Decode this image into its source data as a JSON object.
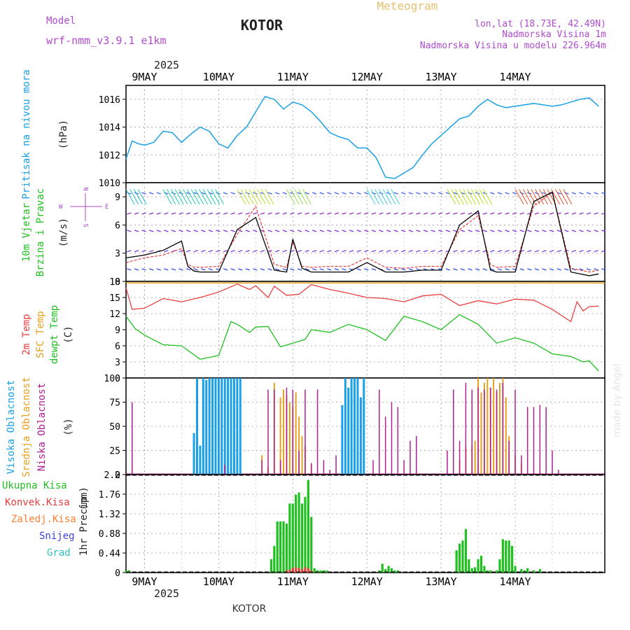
{
  "header": {
    "model_label": "Model",
    "model_name": "wrf-nmm_v3.9.1 e1km",
    "station": "KOTOR",
    "title": "Meteogram",
    "coords": "lon,lat (18.73E, 42.49N)",
    "elevation": "Nadmorska Visina 1m",
    "model_elevation": "Nadmorska Visina u modelu 226.964m",
    "footer_station": "KOTOR",
    "credit": "made by Angel"
  },
  "colors": {
    "pressure": "#1aa0e6",
    "t2m": "#e84040",
    "sfc": "#e6a020",
    "dewpoint": "#20c020",
    "high_cloud": "#1aa0e6",
    "mid_cloud": "#e6a020",
    "low_cloud": "#b02090",
    "total_precip": "#20c020",
    "conv_precip": "#e84040",
    "frozen": "#ff8030",
    "snow": "#4040e0",
    "hail": "#30c0c0",
    "wind_mean": "#000000",
    "wind_gust": "#e84040"
  },
  "chart_data": [
    {
      "type": "line",
      "name": "pressure",
      "ylabel": "Pritisak na nivou mora",
      "units": "(hPa)",
      "ylim": [
        1010,
        1017
      ],
      "yticks": [
        1010,
        1012,
        1014,
        1016
      ],
      "x_hours": [
        0,
        2,
        4,
        6,
        9,
        12,
        15,
        18,
        21,
        24,
        27,
        30,
        33,
        36,
        39,
        42,
        45,
        48,
        51,
        54,
        57,
        60,
        63,
        66,
        69,
        72,
        75,
        78,
        81,
        84,
        87,
        90,
        93,
        96,
        99,
        102,
        105,
        108,
        111,
        114,
        117,
        120,
        123,
        126,
        129,
        132,
        135,
        138,
        141,
        144,
        147,
        150,
        153
      ],
      "values": [
        1011.7,
        1013.0,
        1012.8,
        1012.7,
        1012.9,
        1013.7,
        1013.6,
        1012.9,
        1013.5,
        1014.0,
        1013.7,
        1012.8,
        1012.5,
        1013.4,
        1014.0,
        1015.1,
        1016.2,
        1016.0,
        1015.3,
        1015.8,
        1015.6,
        1015.1,
        1014.4,
        1013.6,
        1013.3,
        1013.1,
        1012.5,
        1012.5,
        1011.8,
        1010.4,
        1010.3,
        1010.7,
        1011.1,
        1012.0,
        1012.8,
        1013.4,
        1014.0,
        1014.6,
        1014.8,
        1015.5,
        1016.0,
        1015.6,
        1015.4,
        1015.5,
        1015.6,
        1015.7,
        1015.6,
        1015.5,
        1015.6,
        1015.8,
        1016.0,
        1016.1,
        1015.5
      ]
    },
    {
      "type": "line",
      "name": "wind",
      "ylabel": "10m Vjetar",
      "ylabel2": "Brzina i Pravac",
      "units": "(m/s)",
      "compass": {
        "n": "N",
        "w": "W",
        "e": "E",
        "s": "S"
      },
      "ylim": [
        0,
        10.5
      ],
      "yticks": [
        0,
        3,
        6,
        9
      ],
      "series": [
        {
          "name": "mean",
          "x_hours": [
            0,
            6,
            12,
            18,
            20,
            22,
            24,
            30,
            36,
            42,
            48,
            52,
            54,
            57,
            60,
            66,
            72,
            78,
            84,
            90,
            96,
            102,
            108,
            114,
            118,
            120,
            126,
            132,
            138,
            144,
            150,
            153
          ],
          "values": [
            2.5,
            2.8,
            3.3,
            4.3,
            1.6,
            1.1,
            1.0,
            1.0,
            5.5,
            6.8,
            1.2,
            1.0,
            4.5,
            1.4,
            1.0,
            1.0,
            1.0,
            2.0,
            1.0,
            1.0,
            1.2,
            1.2,
            6.0,
            7.5,
            1.2,
            1.0,
            1.0,
            8.5,
            9.5,
            1.0,
            0.6,
            0.8
          ]
        },
        {
          "name": "gust",
          "x_hours": [
            0,
            6,
            12,
            18,
            20,
            22,
            24,
            30,
            36,
            42,
            48,
            52,
            54,
            57,
            60,
            66,
            72,
            78,
            84,
            90,
            96,
            102,
            108,
            114,
            118,
            120,
            126,
            132,
            138,
            144,
            150,
            153
          ],
          "values": [
            2.0,
            2.5,
            2.8,
            3.5,
            1.8,
            1.5,
            1.5,
            1.6,
            5.0,
            8.0,
            1.8,
            1.5,
            4.2,
            1.6,
            1.5,
            1.6,
            1.6,
            2.5,
            1.5,
            1.4,
            1.6,
            1.6,
            5.5,
            7.0,
            1.8,
            1.5,
            1.6,
            8.0,
            9.5,
            1.4,
            1.0,
            1.2
          ]
        }
      ]
    },
    {
      "type": "line",
      "name": "temperature",
      "ylabel": "2m Temp",
      "ylabel2": "SFC Temp",
      "ylabel3": "dewpt Temp",
      "units": "(C)",
      "ylim": [
        0,
        18
      ],
      "yticks": [
        0,
        3,
        6,
        9,
        12,
        15,
        18
      ],
      "sfc_value": 17.7,
      "series": [
        {
          "name": "t2m",
          "x_hours": [
            0,
            2,
            6,
            12,
            18,
            24,
            30,
            36,
            40,
            42,
            46,
            48,
            52,
            56,
            60,
            66,
            72,
            78,
            84,
            90,
            96,
            102,
            108,
            114,
            120,
            126,
            132,
            138,
            144,
            146,
            148,
            150,
            153
          ],
          "values": [
            16.8,
            12.8,
            13.0,
            14.8,
            14.2,
            15.0,
            16.0,
            17.5,
            16.5,
            17.2,
            15.0,
            17.1,
            15.4,
            15.6,
            17.4,
            16.5,
            15.8,
            15.0,
            14.8,
            14.2,
            15.3,
            15.6,
            13.5,
            14.4,
            13.8,
            14.7,
            14.5,
            12.8,
            10.5,
            14.2,
            12.5,
            13.3,
            13.4
          ]
        },
        {
          "name": "dewpoint",
          "x_hours": [
            0,
            3,
            6,
            12,
            18,
            24,
            30,
            34,
            36,
            40,
            42,
            46,
            50,
            54,
            58,
            60,
            66,
            72,
            78,
            84,
            90,
            96,
            102,
            108,
            114,
            120,
            126,
            132,
            138,
            144,
            148,
            150,
            153
          ],
          "values": [
            11.5,
            9.2,
            8.0,
            6.2,
            6.0,
            3.5,
            4.2,
            10.5,
            10.0,
            8.5,
            9.5,
            9.6,
            5.8,
            6.5,
            7.2,
            9.0,
            8.5,
            10.0,
            9.0,
            7.0,
            11.5,
            10.5,
            9.0,
            11.8,
            10.0,
            6.5,
            7.5,
            6.5,
            4.5,
            4.0,
            3.0,
            3.2,
            1.3
          ]
        }
      ]
    },
    {
      "type": "bar",
      "name": "cloud",
      "ylabel": "Visoka Oblacnost",
      "ylabel2": "Srednja Oblacnost",
      "ylabel3": "Niska Oblacnost",
      "units": "(%)",
      "ylim": [
        0,
        100
      ],
      "yticks": [
        0,
        25,
        50,
        75,
        100
      ],
      "series": [
        {
          "name": "high",
          "x_hours": [
            22,
            23,
            24,
            25,
            26,
            27,
            28,
            29,
            30,
            31,
            32,
            33,
            34,
            35,
            36,
            37,
            70,
            71,
            72,
            73,
            74,
            75,
            76,
            77
          ],
          "values": [
            43,
            100,
            30,
            100,
            98,
            100,
            100,
            100,
            100,
            100,
            100,
            100,
            100,
            100,
            100,
            100,
            72,
            100,
            90,
            100,
            100,
            100,
            80,
            100
          ]
        },
        {
          "name": "mid",
          "x_hours": [
            44,
            46,
            48,
            50,
            51,
            52,
            53,
            54,
            55,
            56,
            57,
            58,
            60,
            108,
            110,
            112,
            113,
            114,
            115,
            116,
            117,
            118,
            119,
            120,
            121,
            122,
            123,
            124,
            126,
            128
          ],
          "values": [
            20,
            8,
            95,
            80,
            88,
            82,
            75,
            70,
            85,
            60,
            40,
            30,
            10,
            15,
            28,
            30,
            35,
            100,
            85,
            95,
            100,
            90,
            100,
            85,
            95,
            100,
            80,
            40,
            20,
            12
          ]
        },
        {
          "name": "low",
          "x_hours": [
            2,
            32,
            44,
            46,
            48,
            50,
            52,
            54,
            56,
            58,
            60,
            62,
            64,
            66,
            68,
            80,
            82,
            84,
            86,
            88,
            90,
            92,
            94,
            104,
            106,
            108,
            110,
            112,
            114,
            116,
            118,
            120,
            122,
            124,
            126,
            128,
            130,
            132,
            134,
            136,
            138,
            140
          ],
          "values": [
            75,
            10,
            15,
            88,
            88,
            15,
            90,
            88,
            25,
            88,
            12,
            88,
            15,
            5,
            20,
            15,
            88,
            60,
            75,
            70,
            15,
            35,
            40,
            25,
            88,
            35,
            95,
            88,
            90,
            88,
            90,
            88,
            95,
            35,
            88,
            20,
            70,
            70,
            72,
            70,
            25,
            5
          ]
        }
      ]
    },
    {
      "type": "bar",
      "name": "precip",
      "ylabel": "1hr Precip",
      "units": "(mm)",
      "legend": [
        "Ukupna Kisa",
        "Konvek.Kisa",
        "Zaledj.Kisa",
        "Snijeg",
        "Grad"
      ],
      "ylim": [
        0,
        2.2
      ],
      "yticks": [
        0,
        0.44,
        0.88,
        1.32,
        1.76,
        2.2
      ],
      "series": [
        {
          "name": "total",
          "x_hours": [
            0,
            1,
            47,
            48,
            49,
            50,
            51,
            52,
            53,
            54,
            55,
            56,
            57,
            58,
            59,
            60,
            61,
            62,
            63,
            64,
            65,
            82,
            83,
            84,
            85,
            86,
            87,
            88,
            107,
            108,
            109,
            110,
            111,
            112,
            113,
            114,
            115,
            116,
            117,
            118,
            120,
            121,
            122,
            123,
            124,
            125,
            126,
            128,
            129,
            130,
            132,
            134
          ],
          "values": [
            0.05,
            0.05,
            0.3,
            0.6,
            1.15,
            1.15,
            1.15,
            1.1,
            1.55,
            1.55,
            1.75,
            1.8,
            1.55,
            1.7,
            2.08,
            1.25,
            0.1,
            0.05,
            0.05,
            0.05,
            0.05,
            0.05,
            0.2,
            0.08,
            0.15,
            0.1,
            0.05,
            0.05,
            0.5,
            0.65,
            0.72,
            0.98,
            0.3,
            0.1,
            0.12,
            0.3,
            0.38,
            0.15,
            0.05,
            0.05,
            0.05,
            0.3,
            0.75,
            0.72,
            0.72,
            0.6,
            0.15,
            0.08,
            0.05,
            0.1,
            0.05,
            0.08
          ]
        },
        {
          "name": "convective",
          "x_hours": [
            52,
            53,
            54,
            55,
            56,
            57,
            58,
            59,
            60
          ],
          "values": [
            0.05,
            0.06,
            0.1,
            0.12,
            0.1,
            0.08,
            0.12,
            0.1,
            0.05
          ]
        }
      ]
    }
  ],
  "x_axis": {
    "year": "2025",
    "day_labels": [
      "9MAY",
      "10MAY",
      "11MAY",
      "12MAY",
      "13MAY",
      "14MAY"
    ],
    "start_offset_hours": 6,
    "span_hours": 155
  }
}
